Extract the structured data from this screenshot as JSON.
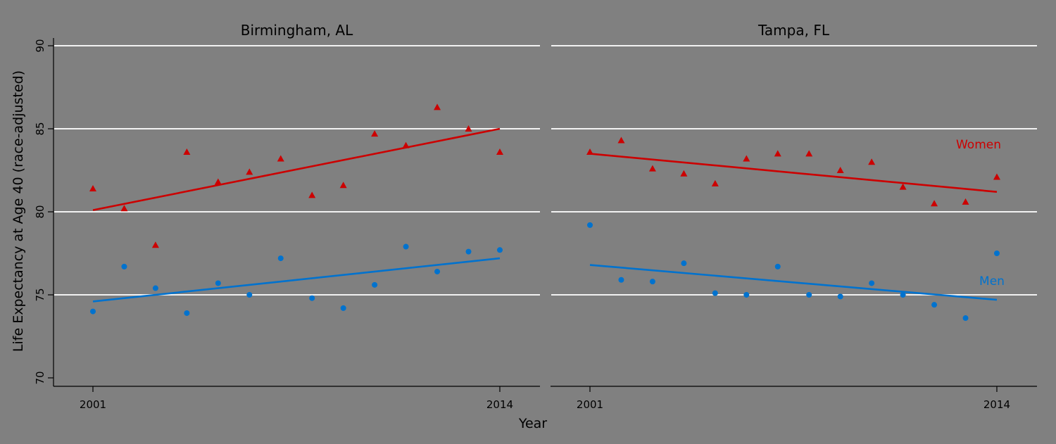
{
  "chart_data": {
    "type": "scatter",
    "title": "",
    "xlabel": "Year",
    "ylabel": "Life Expectancy at Age 40 (race-adjusted)",
    "ylim": [
      70,
      90
    ],
    "yticks": [
      70,
      75,
      80,
      85,
      90
    ],
    "xticks": [
      2001,
      2014
    ],
    "grid": "horizontal",
    "legend": "inline labels on right panel",
    "colors": {
      "women": "#cc0000",
      "men": "#0072ce",
      "background": "#808080",
      "grid": "#f2f2f2"
    },
    "panels": [
      {
        "title": "Birmingham, AL",
        "x": [
          2001,
          2002,
          2003,
          2004,
          2005,
          2006,
          2007,
          2008,
          2009,
          2010,
          2011,
          2012,
          2013,
          2014
        ],
        "series": [
          {
            "name": "Women",
            "marker": "triangle",
            "values": [
              81.4,
              80.2,
              78.0,
              83.6,
              81.8,
              82.4,
              83.2,
              81.0,
              81.6,
              84.7,
              84.0,
              86.3,
              85.0,
              83.6
            ],
            "trend": [
              80.1,
              85.0
            ]
          },
          {
            "name": "Men",
            "marker": "circle",
            "values": [
              74.0,
              76.7,
              75.4,
              73.9,
              75.7,
              75.0,
              77.2,
              74.8,
              74.2,
              75.6,
              77.9,
              76.4,
              77.6,
              77.7
            ],
            "trend": [
              74.6,
              77.2
            ]
          }
        ]
      },
      {
        "title": "Tampa, FL",
        "x": [
          2001,
          2002,
          2003,
          2004,
          2005,
          2006,
          2007,
          2008,
          2009,
          2010,
          2011,
          2012,
          2013,
          2014
        ],
        "series": [
          {
            "name": "Women",
            "marker": "triangle",
            "values": [
              83.6,
              84.3,
              82.6,
              82.3,
              81.7,
              83.2,
              83.5,
              83.5,
              82.5,
              83.0,
              81.5,
              80.5,
              80.6,
              82.1
            ],
            "trend": [
              83.5,
              81.2
            ]
          },
          {
            "name": "Men",
            "marker": "circle",
            "values": [
              79.2,
              75.9,
              75.8,
              76.9,
              75.1,
              75.0,
              76.7,
              75.0,
              74.9,
              75.7,
              75.0,
              74.4,
              73.6,
              77.5
            ],
            "trend": [
              76.8,
              74.7
            ]
          }
        ]
      }
    ],
    "annotations": [
      {
        "panel": 1,
        "text": "Women",
        "color": "#cc0000"
      },
      {
        "panel": 1,
        "text": "Men",
        "color": "#0072ce"
      }
    ]
  }
}
